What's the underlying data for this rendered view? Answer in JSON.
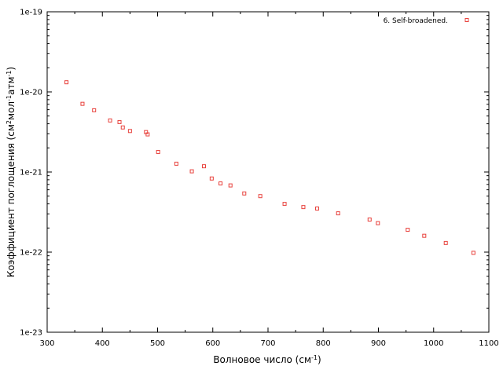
{
  "chart_data": {
    "type": "scatter",
    "xlabel": "Волновое число (см",
    "xlabel_sup": "-1",
    "xlabel_tail": ")",
    "ylabel_parts": {
      "a": "Коэффициент поглощения (см",
      "a_sup": "2",
      "b": "мол",
      "b_sup": "-1",
      "c": "атм",
      "c_sup": "-1",
      "d": ")"
    },
    "xlim": [
      300,
      1100
    ],
    "ylim": [
      1e-23,
      1e-19
    ],
    "yscale": "log",
    "grid": false,
    "legend_position": "top-right",
    "x_ticks": [
      {
        "value": 300,
        "label": "300"
      },
      {
        "value": 400,
        "label": "400"
      },
      {
        "value": 500,
        "label": "500"
      },
      {
        "value": 600,
        "label": "600"
      },
      {
        "value": 700,
        "label": "700"
      },
      {
        "value": 800,
        "label": "800"
      },
      {
        "value": 900,
        "label": "900"
      },
      {
        "value": 1000,
        "label": "1000"
      },
      {
        "value": 1100,
        "label": "1100"
      }
    ],
    "y_ticks": [
      {
        "value": 1e-23,
        "label": "1e-23"
      },
      {
        "value": 1e-22,
        "label": "1e-22"
      },
      {
        "value": 1e-21,
        "label": "1e-21"
      },
      {
        "value": 1e-20,
        "label": "1e-20"
      },
      {
        "value": 1e-19,
        "label": "1e-19"
      }
    ],
    "series": [
      {
        "name": "6. Self-broadened.",
        "color": "#e8413c",
        "marker": "square-open",
        "points": [
          [
            335,
            1.32e-20
          ],
          [
            364,
            7.1e-21
          ],
          [
            385,
            5.9e-21
          ],
          [
            414,
            4.4e-21
          ],
          [
            431,
            4.2e-21
          ],
          [
            437,
            3.6e-21
          ],
          [
            450,
            3.25e-21
          ],
          [
            479,
            3.15e-21
          ],
          [
            482,
            2.95e-21
          ],
          [
            501,
            1.78e-21
          ],
          [
            534,
            1.27e-21
          ],
          [
            562,
            1.02e-21
          ],
          [
            584,
            1.18e-21
          ],
          [
            598,
            8.3e-22
          ],
          [
            614,
            7.2e-22
          ],
          [
            632,
            6.8e-22
          ],
          [
            657,
            5.4e-22
          ],
          [
            686,
            5e-22
          ],
          [
            730,
            4e-22
          ],
          [
            764,
            3.65e-22
          ],
          [
            789,
            3.5e-22
          ],
          [
            827,
            3.05e-22
          ],
          [
            884,
            2.55e-22
          ],
          [
            899,
            2.3e-22
          ],
          [
            953,
            1.9e-22
          ],
          [
            983,
            1.6e-22
          ],
          [
            1022,
            1.3e-22
          ],
          [
            1072,
            9.8e-23
          ]
        ]
      }
    ]
  }
}
